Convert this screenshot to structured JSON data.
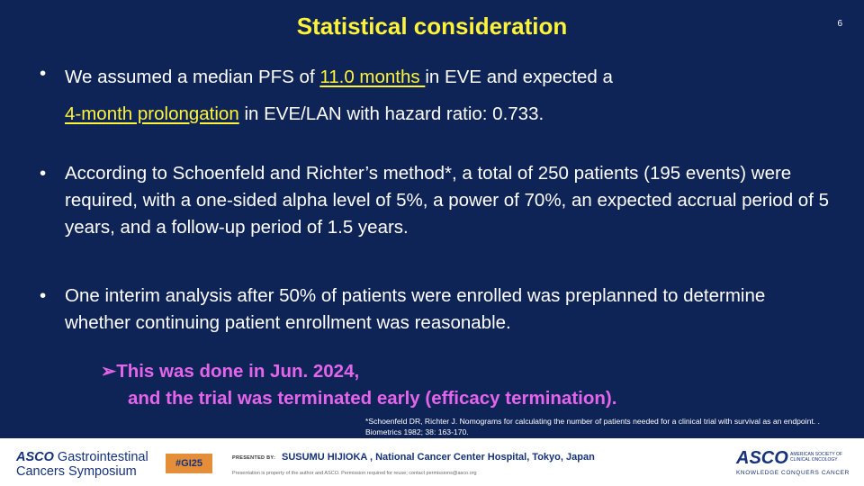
{
  "slide": {
    "title": "Statistical consideration",
    "page_number": "6",
    "bullet_symbol": "•",
    "bullets": [
      {
        "parts": [
          "We assumed a median PFS of ",
          "11.0 months ",
          "in EVE and expected a"
        ],
        "line2_parts": [
          "4-month prolongation",
          " in EVE/LAN with hazard ratio: 0.733."
        ]
      },
      {
        "text": "According to Schoenfeld and Richter’s method*, a total of 250 patients (195 events) were required, with a one-sided alpha level of 5%, a power of 70%, an expected accrual period of 5 years, and a follow-up period of 1.5 years."
      },
      {
        "text": "One interim analysis after 50% of patients were enrolled was preplanned to determine whether continuing patient enrollment was reasonable."
      }
    ],
    "callout": {
      "arrow": "➢",
      "line1": "This was done in Jun. 2024,",
      "line2": "and the trial was terminated early (efficacy termination)."
    },
    "reference": "*Schoenfeld DR, Richter J. Nomograms for calculating the number of patients needed for a clinical trial with survival as an endpoint. . Biometrics 1982; 38: 163-170."
  },
  "footer": {
    "logo_left_asco": "ASCO",
    "logo_left_line1_rest": " Gastrointestinal",
    "logo_left_line2": "Cancers Symposium",
    "hashtag": "#GI25",
    "presented_by": "PRESENTED BY:",
    "presenter": "SUSUMU HIJIOKA , National Cancer Center Hospital, Tokyo, Japan",
    "note": "Presentation is property of the author and ASCO. Permission required for reuse; contact permissions@asco.org",
    "logo_right_word": "ASCO",
    "logo_right_side_1": "AMERICAN SOCIETY OF",
    "logo_right_side_2": "CLINICAL ONCOLOGY",
    "logo_right_tag": "KNOWLEDGE CONQUERS CANCER"
  },
  "colors": {
    "background": "#0f2456",
    "title": "#fff33a",
    "highlight": "#fff33a",
    "callout": "#e465ec",
    "hashtag_bg": "#e58e3a",
    "brand": "#15327a"
  }
}
